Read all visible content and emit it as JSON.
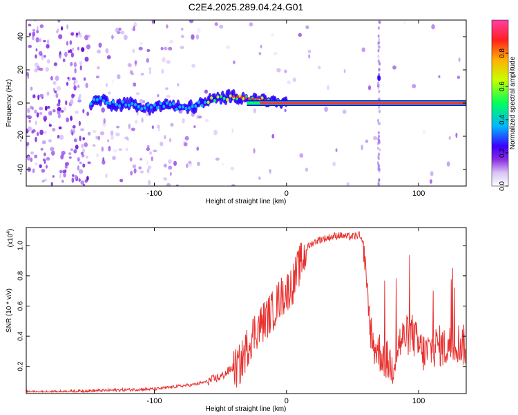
{
  "title": "C2E4.2025.289.04.24.G01",
  "colors": {
    "snr_line": "#e8312f",
    "ridge": "#ff2200",
    "colormap": [
      "#ffffff",
      "#8a2be2",
      "#3b00ff",
      "#00b8ff",
      "#00ff5a",
      "#c8ff00",
      "#ffb000",
      "#ff2020",
      "#ff3fa8"
    ]
  },
  "chart_data": [
    {
      "type": "heatmap",
      "name": "spectrogram",
      "xlabel": "Height of straight line (km)",
      "ylabel": "Frequency (Hz)",
      "xlim": [
        -197,
        136
      ],
      "ylim": [
        -50,
        50
      ],
      "xticks": [
        -100,
        0,
        100
      ],
      "yticks": [
        -40,
        -20,
        0,
        20,
        40
      ],
      "ridge": {
        "x": [
          -148,
          -140,
          -130,
          -120,
          -110,
          -100,
          -90,
          -80,
          -70,
          -60,
          -50,
          -40,
          -30,
          -20,
          -10,
          0,
          136
        ],
        "frequency_hz": [
          0,
          2,
          -1,
          0,
          -3,
          -2,
          -1,
          -3,
          -2,
          1,
          3,
          4,
          3,
          2,
          1,
          0,
          0
        ]
      },
      "colorbar": {
        "label": "Normalized spectral amplitude",
        "ticks": [
          "0.0",
          "0.2",
          "0.4",
          "0.6",
          "0.8"
        ],
        "range": [
          0,
          1
        ]
      }
    },
    {
      "type": "line",
      "name": "snr",
      "xlabel": "Height of straight line (km)",
      "ylabel": "SNR (10 * v/v)",
      "yscale_note": "(x10",
      "yscale_exp": "4",
      "xlim": [
        -197,
        136
      ],
      "ylim": [
        0.02,
        1.12
      ],
      "xticks": [
        -100,
        0,
        100
      ],
      "yticks": [
        "0.2",
        "0.4",
        "0.6",
        "0.8",
        "1.0"
      ],
      "x": [
        -197,
        -180,
        -160,
        -140,
        -120,
        -100,
        -90,
        -80,
        -70,
        -60,
        -50,
        -45,
        -40,
        -35,
        -30,
        -25,
        -20,
        -15,
        -10,
        -5,
        0,
        5,
        10,
        15,
        20,
        25,
        30,
        35,
        40,
        45,
        50,
        55,
        58,
        60,
        62,
        65,
        70,
        75,
        80,
        85,
        90,
        95,
        100,
        105,
        110,
        115,
        120,
        125,
        130,
        136
      ],
      "y": [
        0.03,
        0.03,
        0.035,
        0.04,
        0.045,
        0.05,
        0.06,
        0.07,
        0.08,
        0.1,
        0.13,
        0.16,
        0.2,
        0.24,
        0.35,
        0.45,
        0.5,
        0.55,
        0.6,
        0.68,
        0.72,
        0.78,
        0.9,
        0.98,
        1.02,
        1.04,
        1.05,
        1.06,
        1.07,
        1.06,
        1.06,
        1.07,
        1.0,
        0.85,
        0.6,
        0.35,
        0.3,
        0.25,
        0.2,
        0.35,
        0.4,
        0.42,
        0.33,
        0.28,
        0.32,
        0.34,
        0.32,
        0.35,
        0.36,
        0.33
      ]
    }
  ]
}
